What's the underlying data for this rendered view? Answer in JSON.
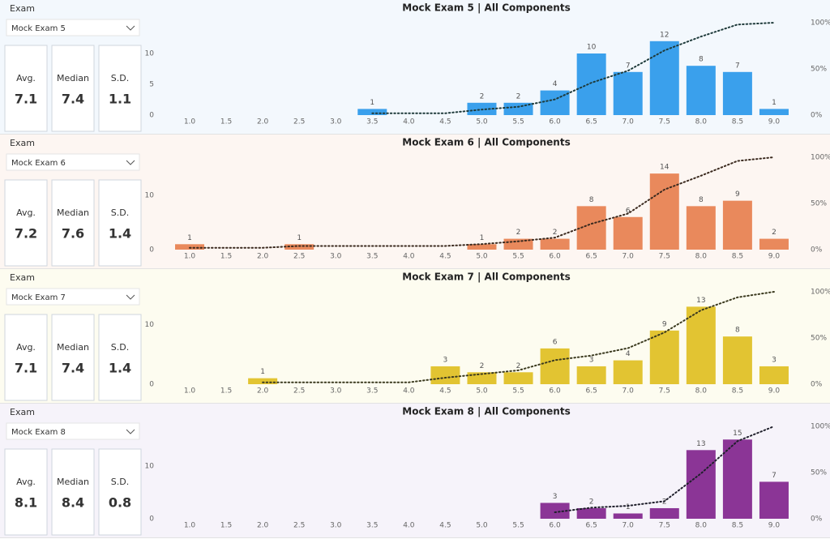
{
  "panels": [
    {
      "slicer_label": "Exam",
      "slicer_value": "Mock Exam 5",
      "cards": [
        {
          "label": "Avg.",
          "value": 7.1
        },
        {
          "label": "Median",
          "value": 7.4
        },
        {
          "label": "S.D.",
          "value": 1.1
        }
      ]
    },
    {
      "slicer_label": "Exam",
      "slicer_value": "Mock Exam 6",
      "cards": [
        {
          "label": "Avg.",
          "value": 7.2
        },
        {
          "label": "Median",
          "value": 7.6
        },
        {
          "label": "S.D.",
          "value": 1.4
        }
      ]
    },
    {
      "slicer_label": "Exam",
      "slicer_value": "Mock Exam 7",
      "cards": [
        {
          "label": "Avg.",
          "value": 7.1
        },
        {
          "label": "Median",
          "value": 7.4
        },
        {
          "label": "S.D.",
          "value": 1.4
        }
      ]
    },
    {
      "slicer_label": "Exam",
      "slicer_value": "Mock Exam 8",
      "cards": [
        {
          "label": "Avg.",
          "value": 8.1
        },
        {
          "label": "Median",
          "value": 8.4
        },
        {
          "label": "S.D.",
          "value": 0.8
        }
      ]
    }
  ],
  "chart_data": [
    {
      "type": "combo",
      "title": "Mock Exam 5 | All Components",
      "background": "#f3f8fd",
      "categories": [
        "1.0",
        "1.5",
        "2.0",
        "2.5",
        "3.0",
        "3.5",
        "4.0",
        "4.5",
        "5.0",
        "5.5",
        "6.0",
        "6.5",
        "7.0",
        "7.5",
        "8.0",
        "8.5",
        "9.0"
      ],
      "series": [
        {
          "type": "bar",
          "color": "#3aa0ec",
          "values": [
            null,
            null,
            null,
            null,
            null,
            1,
            null,
            null,
            2,
            2,
            4,
            10,
            7,
            12,
            8,
            7,
            1
          ]
        },
        {
          "type": "line",
          "axis": "y2",
          "color": "#1f3b3b",
          "values": [
            null,
            null,
            null,
            null,
            null,
            2,
            2,
            2,
            6,
            9,
            17,
            35,
            48,
            70,
            85,
            98,
            100
          ]
        }
      ],
      "ylim": [
        0,
        15
      ],
      "yticks": [
        0,
        5,
        10
      ],
      "y2lim": [
        0,
        100
      ],
      "y2ticks": [
        {
          "value": 0,
          "label": "0%"
        },
        {
          "value": 50,
          "label": "50%"
        },
        {
          "value": 100,
          "label": "100%"
        }
      ]
    },
    {
      "type": "combo",
      "title": "Mock Exam 6 | All Components",
      "background": "#fdf6f2",
      "categories": [
        "1.0",
        "1.5",
        "2.0",
        "2.5",
        "3.0",
        "3.5",
        "4.0",
        "4.5",
        "5.0",
        "5.5",
        "6.0",
        "6.5",
        "7.0",
        "7.5",
        "8.0",
        "8.5",
        "9.0"
      ],
      "series": [
        {
          "type": "bar",
          "color": "#e9895c",
          "values": [
            1,
            null,
            null,
            1,
            null,
            null,
            null,
            null,
            1,
            2,
            2,
            8,
            6,
            14,
            8,
            9,
            2
          ]
        },
        {
          "type": "line",
          "axis": "y2",
          "color": "#3b2a1f",
          "values": [
            2,
            2,
            2,
            4,
            4,
            4,
            4,
            4,
            6,
            9,
            13,
            28,
            39,
            65,
            80,
            96,
            100
          ]
        }
      ],
      "ylim": [
        0,
        17
      ],
      "yticks": [
        0,
        10
      ],
      "y2lim": [
        0,
        100
      ],
      "y2ticks": [
        {
          "value": 0,
          "label": "0%"
        },
        {
          "value": 50,
          "label": "50%"
        },
        {
          "value": 100,
          "label": "100%"
        }
      ]
    },
    {
      "type": "combo",
      "title": "Mock Exam 7 | All Components",
      "background": "#fdfcf0",
      "categories": [
        "1.0",
        "1.5",
        "2.0",
        "2.5",
        "3.0",
        "3.5",
        "4.0",
        "4.5",
        "5.0",
        "5.5",
        "6.0",
        "6.5",
        "7.0",
        "7.5",
        "8.0",
        "8.5",
        "9.0"
      ],
      "series": [
        {
          "type": "bar",
          "color": "#e2c432",
          "values": [
            null,
            null,
            1,
            null,
            null,
            null,
            null,
            3,
            2,
            2,
            6,
            3,
            4,
            9,
            13,
            8,
            3
          ]
        },
        {
          "type": "line",
          "axis": "y2",
          "color": "#3b3a1f",
          "values": [
            null,
            null,
            2,
            2,
            2,
            2,
            2,
            7,
            11,
            15,
            26,
            31,
            39,
            56,
            80,
            94,
            100
          ]
        }
      ],
      "ylim": [
        0,
        15.5
      ],
      "yticks": [
        0,
        10
      ],
      "y2lim": [
        0,
        100
      ],
      "y2ticks": [
        {
          "value": 0,
          "label": "0%"
        },
        {
          "value": 50,
          "label": "50%"
        },
        {
          "value": 100,
          "label": "100%"
        }
      ]
    },
    {
      "type": "combo",
      "title": "Mock Exam 8 | All Components",
      "background": "#f6f3fa",
      "categories": [
        "1.0",
        "1.5",
        "2.0",
        "2.5",
        "3.0",
        "3.5",
        "4.0",
        "4.5",
        "5.0",
        "5.5",
        "6.0",
        "6.5",
        "7.0",
        "7.5",
        "8.0",
        "8.5",
        "9.0"
      ],
      "series": [
        {
          "type": "bar",
          "color": "#8b3596",
          "values": [
            null,
            null,
            null,
            null,
            null,
            null,
            null,
            null,
            null,
            null,
            3,
            2,
            1,
            2,
            13,
            15,
            7
          ]
        },
        {
          "type": "line",
          "axis": "y2",
          "color": "#1f1f2b",
          "values": [
            null,
            null,
            null,
            null,
            null,
            null,
            null,
            null,
            null,
            null,
            7,
            12,
            14,
            19,
            49,
            84,
            100
          ]
        }
      ],
      "ylim": [
        0,
        17.5
      ],
      "yticks": [
        0,
        10
      ],
      "y2lim": [
        0,
        100
      ],
      "y2ticks": [
        {
          "value": 0,
          "label": "0%"
        },
        {
          "value": 50,
          "label": "50%"
        },
        {
          "value": 100,
          "label": "100%"
        }
      ]
    }
  ]
}
